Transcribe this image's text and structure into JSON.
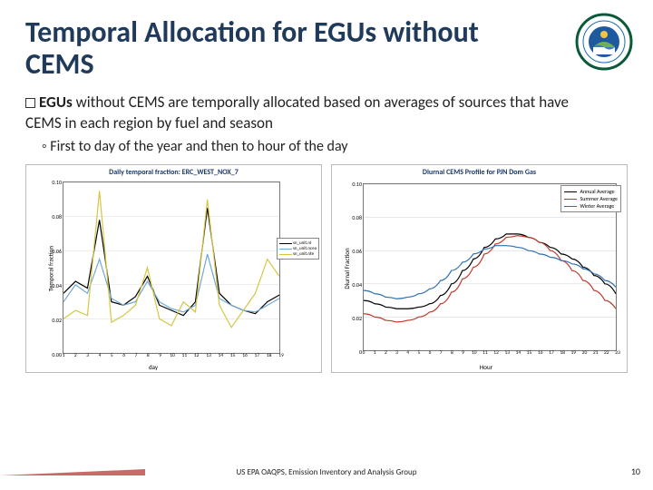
{
  "title": "Temporal Allocation for EGUs without CEMS",
  "bullet1_prefix": "EGUs",
  "bullet1_rest": " without CEMS are temporally allocated based on averages of sources that have CEMS in each region by fuel and season",
  "bullet2": "First to day of the year and then to hour of the day",
  "footer": "US EPA OAQPS, Emission Inventory and Analysis Group",
  "page": "10",
  "left_chart": {
    "title": "Daily temporal fraction: ERC_WEST_NOX_7",
    "ylabel": "Temporal fraction",
    "xlabel": "day",
    "ylim": [
      0.0,
      0.1
    ],
    "yticks": [
      "0.00",
      "0.02",
      "0.04",
      "0.06",
      "0.08",
      "0.10"
    ],
    "xticks": [
      "1",
      "2",
      "3",
      "4",
      "5",
      "6",
      "7",
      "8",
      "9",
      "10",
      "11",
      "12",
      "13",
      "14",
      "15",
      "16",
      "17",
      "18",
      "19"
    ],
    "grid_color": "#d8d8d8",
    "series": [
      {
        "name": "sn_unit.nl",
        "color": "#000000",
        "vals": [
          0.035,
          0.042,
          0.038,
          0.078,
          0.03,
          0.028,
          0.033,
          0.045,
          0.028,
          0.025,
          0.022,
          0.03,
          0.085,
          0.035,
          0.028,
          0.025,
          0.023,
          0.03,
          0.034
        ]
      },
      {
        "name": "sn_unit.ncea",
        "color": "#6fa8d6",
        "vals": [
          0.03,
          0.04,
          0.035,
          0.055,
          0.032,
          0.028,
          0.03,
          0.042,
          0.03,
          0.026,
          0.024,
          0.028,
          0.058,
          0.032,
          0.028,
          0.025,
          0.024,
          0.028,
          0.032
        ]
      },
      {
        "name": "sn_unit.nte",
        "color": "#d6c542",
        "vals": [
          0.02,
          0.025,
          0.022,
          0.095,
          0.018,
          0.022,
          0.028,
          0.05,
          0.02,
          0.016,
          0.03,
          0.024,
          0.09,
          0.028,
          0.015,
          0.025,
          0.035,
          0.055,
          0.045
        ]
      }
    ]
  },
  "right_chart": {
    "title": "Diurnal CEMS Profile for PJN Dom Gas",
    "ylabel": "Diurnal Fraction",
    "xlabel": "Hour",
    "ylim": [
      0.0,
      0.1
    ],
    "yticks": [
      "0",
      "0.02",
      "0.04",
      "0.06",
      "0.08",
      "0.10"
    ],
    "xticks": [
      "0",
      "1",
      "2",
      "3",
      "4",
      "5",
      "6",
      "7",
      "8",
      "9",
      "10",
      "11",
      "12",
      "13",
      "14",
      "15",
      "16",
      "17",
      "18",
      "19",
      "20",
      "21",
      "22",
      "23"
    ],
    "grid_color": "#d0d0d0",
    "series": [
      {
        "name": "Annual Average",
        "color": "#000000",
        "vals": [
          0.03,
          0.028,
          0.026,
          0.025,
          0.025,
          0.026,
          0.028,
          0.033,
          0.04,
          0.048,
          0.055,
          0.062,
          0.067,
          0.07,
          0.07,
          0.068,
          0.065,
          0.062,
          0.058,
          0.055,
          0.05,
          0.045,
          0.04,
          0.034
        ]
      },
      {
        "name": "Summer Average",
        "color": "#c0392b",
        "vals": [
          0.022,
          0.02,
          0.018,
          0.017,
          0.018,
          0.02,
          0.023,
          0.028,
          0.035,
          0.043,
          0.05,
          0.058,
          0.064,
          0.068,
          0.069,
          0.068,
          0.065,
          0.06,
          0.054,
          0.048,
          0.042,
          0.036,
          0.03,
          0.025
        ]
      },
      {
        "name": "Winter Average",
        "color": "#2e6fb0",
        "vals": [
          0.036,
          0.034,
          0.032,
          0.031,
          0.032,
          0.034,
          0.037,
          0.042,
          0.048,
          0.053,
          0.058,
          0.061,
          0.063,
          0.063,
          0.062,
          0.06,
          0.058,
          0.056,
          0.054,
          0.052,
          0.049,
          0.046,
          0.042,
          0.038
        ]
      }
    ]
  },
  "logo": {
    "outer": "#0a5a3a",
    "ring_text": "#1a6bb0",
    "inner": "#1f5a9e"
  }
}
